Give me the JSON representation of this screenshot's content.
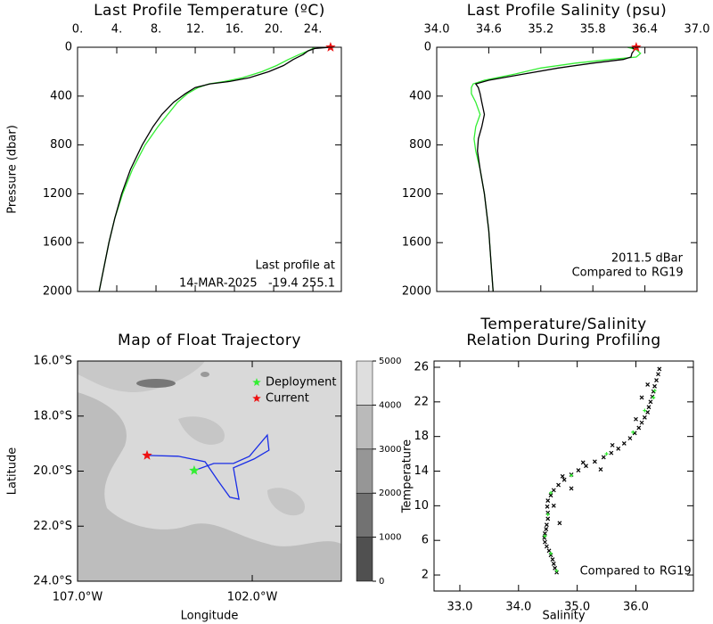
{
  "chart_data": [
    {
      "type": "line",
      "title": "Last Profile Temperature (ºC)",
      "ylabel": "Pressure (dbar)",
      "xlim": [
        0,
        26.9
      ],
      "ylim": [
        0,
        2000
      ],
      "invert_y": true,
      "xticks": [
        {
          "value": 0,
          "label": "0."
        },
        {
          "value": 4,
          "label": "4."
        },
        {
          "value": 8,
          "label": "8."
        },
        {
          "value": 12,
          "label": "12."
        },
        {
          "value": 16,
          "label": "16."
        },
        {
          "value": 20,
          "label": "20."
        },
        {
          "value": 24,
          "label": "24."
        }
      ],
      "yticks": [
        0,
        400,
        800,
        1200,
        1600,
        2000
      ],
      "series": [
        {
          "color": "#33ee33",
          "pressure": [
            0,
            10,
            30,
            60,
            100,
            150,
            200,
            250,
            280,
            300,
            330,
            380,
            450,
            550,
            650,
            800,
            1000,
            1200,
            1400,
            1600,
            1800,
            2000
          ],
          "values": [
            24.2,
            24.0,
            23.5,
            22.6,
            21.5,
            20.3,
            18.8,
            16.8,
            15.0,
            13.4,
            12.3,
            11.2,
            10.2,
            9.2,
            8.2,
            6.9,
            5.6,
            4.6,
            3.8,
            3.2,
            2.7,
            2.2
          ]
        },
        {
          "color": "#000000",
          "pressure": [
            0,
            10,
            30,
            60,
            100,
            150,
            200,
            250,
            280,
            300,
            330,
            380,
            450,
            550,
            650,
            800,
            1000,
            1200,
            1400,
            1600,
            1800,
            2000
          ],
          "values": [
            25.8,
            24.2,
            23.5,
            23.0,
            22.0,
            21.0,
            19.5,
            17.5,
            15.5,
            13.5,
            12.0,
            11.0,
            9.8,
            8.6,
            7.7,
            6.6,
            5.4,
            4.5,
            3.8,
            3.2,
            2.7,
            2.2
          ]
        },
        {
          "color": "#ee1111",
          "marker": "star",
          "pressure": [
            0
          ],
          "values": [
            25.8
          ]
        }
      ],
      "annotations": [
        "Last profile at",
        "14-MAR-2025   -19.4 255.1"
      ]
    },
    {
      "type": "line",
      "title": "Last Profile Salinity (psu)",
      "xlim": [
        34.0,
        37.0
      ],
      "ylim": [
        0,
        2000
      ],
      "invert_y": true,
      "xticks": [
        {
          "value": 34,
          "label": "34.0"
        },
        34.6,
        35.2,
        35.8,
        36.4,
        {
          "value": 37,
          "label": "37.0"
        }
      ],
      "yticks": [
        0,
        400,
        800,
        1200,
        1600,
        2000
      ],
      "series": [
        {
          "color": "#33ee33",
          "pressure": [
            0,
            20,
            50,
            80,
            100,
            130,
            170,
            220,
            270,
            300,
            330,
            380,
            450,
            550,
            650,
            750,
            850,
            1000,
            1200,
            1500,
            1800,
            2000
          ],
          "values": [
            36.2,
            36.3,
            36.35,
            36.3,
            36.0,
            35.6,
            35.2,
            34.9,
            34.55,
            34.42,
            34.4,
            34.4,
            34.45,
            34.5,
            34.45,
            34.43,
            34.45,
            34.5,
            34.55,
            34.6,
            34.63,
            34.65
          ]
        },
        {
          "color": "#000000",
          "pressure": [
            0,
            20,
            50,
            80,
            100,
            130,
            170,
            220,
            270,
            300,
            330,
            380,
            450,
            550,
            650,
            750,
            850,
            1000,
            1200,
            1500,
            1800,
            2000
          ],
          "values": [
            36.25,
            36.28,
            36.25,
            36.24,
            36.15,
            35.8,
            35.4,
            35.0,
            34.6,
            34.45,
            34.48,
            34.5,
            34.52,
            34.55,
            34.52,
            34.48,
            34.47,
            34.5,
            34.55,
            34.6,
            34.63,
            34.65
          ]
        },
        {
          "color": "#ee1111",
          "marker": "star",
          "pressure": [
            0
          ],
          "values": [
            36.3
          ]
        }
      ],
      "annotations": [
        "2011.5 dBar"
      ],
      "note": {
        "text": "Compared to",
        "highlight": "RG19",
        "highlight_color": "#33ee33"
      }
    },
    {
      "type": "map",
      "title": "Map of Float Trajectory",
      "xlabel": "Longitude",
      "ylabel": "Latitude",
      "xlim": [
        -107,
        -99.45
      ],
      "ylim": [
        -24,
        -16
      ],
      "xticks": [
        {
          "value": -107,
          "label": "107.0°W"
        },
        {
          "value": -102,
          "label": "102.0°W"
        }
      ],
      "yticks": [
        {
          "value": -16,
          "label": "16.0°S"
        },
        {
          "value": -18,
          "label": "18.0°S"
        },
        {
          "value": -20,
          "label": "20.0°S"
        },
        {
          "value": -22,
          "label": "22.0°S"
        },
        {
          "value": -24,
          "label": "24.0°S"
        }
      ],
      "legend": "upper right",
      "series": [
        {
          "color": "#1a2ee6",
          "x": [
            -103.66,
            -103.1,
            -102.54,
            -102.08,
            -101.57,
            -101.52,
            -101.95,
            -102.54,
            -102.38,
            -102.64,
            -102.97,
            -103.35,
            -104.12,
            -105.01
          ],
          "values": [
            -19.98,
            -19.72,
            -19.72,
            -19.46,
            -18.69,
            -19.24,
            -19.56,
            -19.88,
            -21.02,
            -20.95,
            -20.37,
            -19.66,
            -19.46,
            -19.43
          ]
        },
        {
          "name": "Deployment",
          "color": "#33ee33",
          "marker": "star",
          "x": [
            -103.66
          ],
          "values": [
            -19.98
          ]
        },
        {
          "name": "Current",
          "color": "#ee1111",
          "marker": "star",
          "x": [
            -105.01
          ],
          "values": [
            -19.43
          ]
        }
      ],
      "colorbar": {
        "ticks": [
          0,
          1000,
          2000,
          3000,
          4000,
          5000
        ],
        "colors": [
          "#505050",
          "#727272",
          "#969696",
          "#bababa",
          "#dedede"
        ]
      }
    },
    {
      "type": "scatter",
      "title": [
        "Temperature/Salinity",
        "Relation During Profiling"
      ],
      "xlabel": "Salinity",
      "ylabel": "Temperature",
      "xlim": [
        32.56,
        36.98
      ],
      "ylim": [
        0.15,
        26.72
      ],
      "xticks": [
        {
          "value": 33,
          "label": "33.0"
        },
        {
          "value": 34,
          "label": "34.0"
        },
        {
          "value": 35,
          "label": "35.0"
        },
        {
          "value": 36,
          "label": "36.0"
        }
      ],
      "yticks": [
        2,
        6,
        10,
        14,
        18,
        22,
        26
      ],
      "series": [
        {
          "color": "#000000",
          "marker": "x",
          "x": [
            34.65,
            34.62,
            34.6,
            34.58,
            34.55,
            34.52,
            34.48,
            34.45,
            34.44,
            34.45,
            34.47,
            34.48,
            34.5,
            34.5,
            34.49,
            34.5,
            34.55,
            34.6,
            34.68,
            34.78,
            34.9,
            35.02,
            35.15,
            35.3,
            35.45,
            35.58,
            35.7,
            35.8,
            35.9,
            35.98,
            36.05,
            36.1,
            36.15,
            36.2,
            36.22,
            36.25,
            36.28,
            36.3,
            36.32,
            36.35,
            36.38,
            36.4,
            34.6,
            34.75,
            35.1,
            35.6,
            36.0,
            36.1,
            36.2,
            34.7,
            34.9,
            35.4
          ],
          "values": [
            2.3,
            2.8,
            3.3,
            3.8,
            4.3,
            4.8,
            5.3,
            5.8,
            6.3,
            6.8,
            7.3,
            7.8,
            8.5,
            9.2,
            9.9,
            10.6,
            11.2,
            11.8,
            12.4,
            13.0,
            13.6,
            14.1,
            14.6,
            15.1,
            15.6,
            16.1,
            16.6,
            17.2,
            17.8,
            18.4,
            19.0,
            19.6,
            20.2,
            20.8,
            21.4,
            22.0,
            22.6,
            23.2,
            23.8,
            24.5,
            25.2,
            25.8,
            10.0,
            13.4,
            15.0,
            17.0,
            20.0,
            22.5,
            24.0,
            8.0,
            12.0,
            14.2
          ]
        },
        {
          "color": "#33ee33",
          "marker": "dot",
          "x": [
            34.65,
            34.55,
            34.45,
            34.5,
            34.55,
            34.9,
            35.5,
            35.95,
            36.15,
            36.3,
            36.32
          ],
          "values": [
            2.5,
            4.5,
            6.5,
            9.0,
            11.5,
            13.5,
            16.0,
            18.5,
            21.0,
            22.5,
            23.3
          ]
        }
      ],
      "note": {
        "text": "Compared to",
        "highlight": "RG19",
        "highlight_color": "#33ee33"
      }
    }
  ]
}
